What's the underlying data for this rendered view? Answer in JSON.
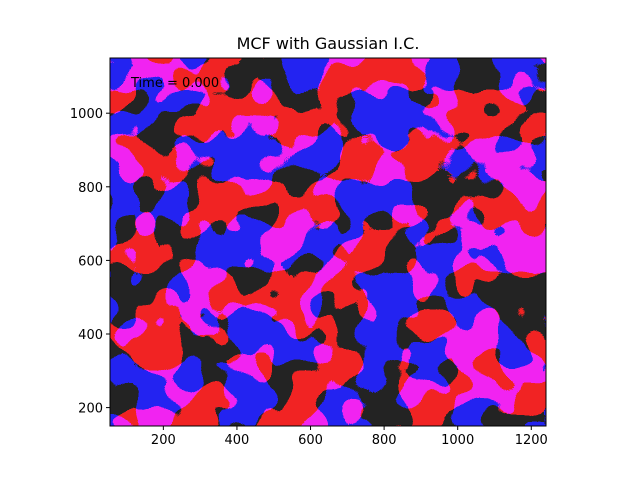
{
  "chart_data": {
    "type": "heatmap",
    "title": "MCF with Gaussian I.C.",
    "xlabel": "",
    "ylabel": "",
    "xlim": [
      55,
      1240
    ],
    "ylim": [
      150,
      1150
    ],
    "xticks": [
      200,
      400,
      600,
      800,
      1000,
      1200
    ],
    "yticks": [
      200,
      400,
      600,
      800,
      1000
    ],
    "grid": false,
    "annotation": "Time = 0.000",
    "colors": {
      "phase_a": "#2424f2",
      "phase_b": "#f22424"
    }
  }
}
